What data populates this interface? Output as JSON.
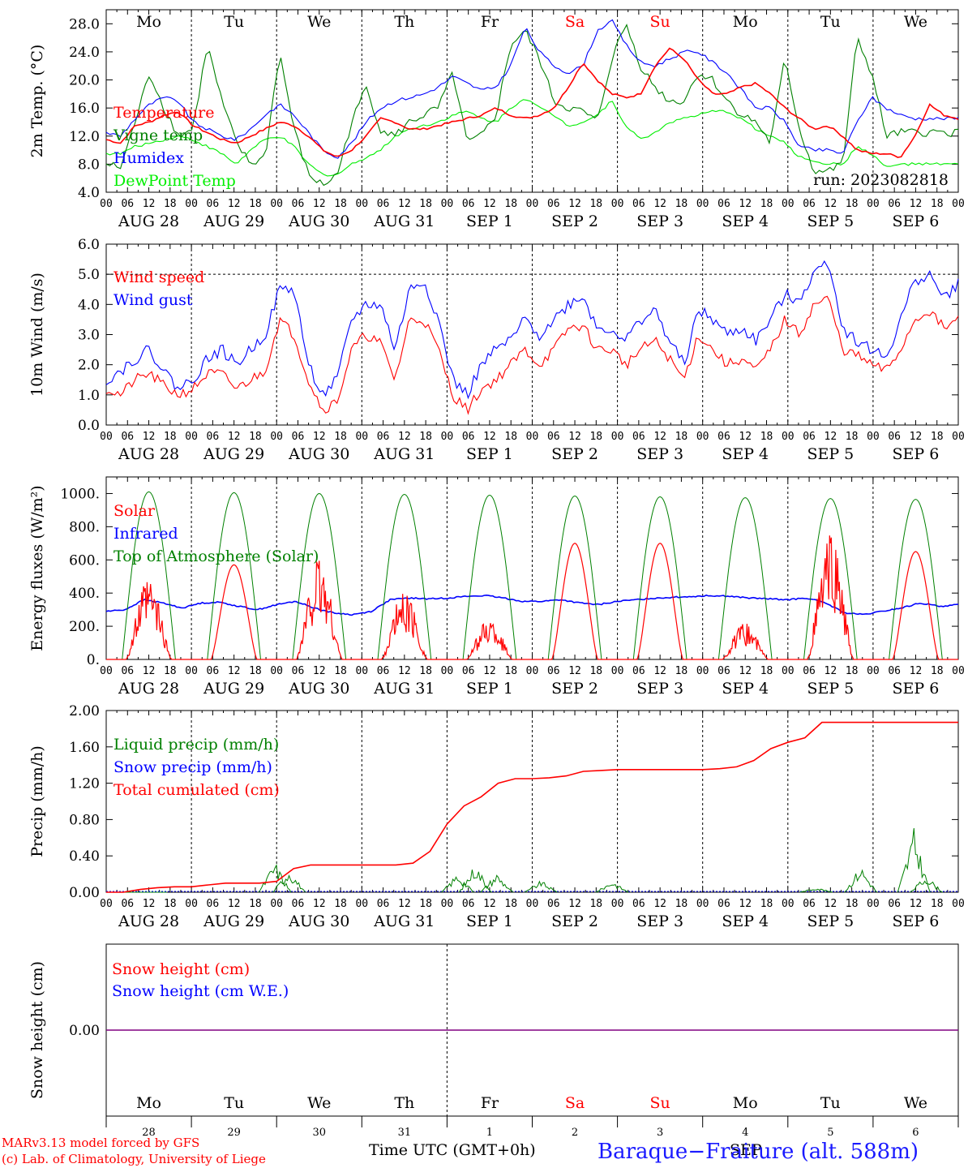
{
  "chart_data": [
    {
      "type": "line",
      "ylabel": "2m Temp. (°C)",
      "ylim": [
        4,
        30
      ],
      "yticks": [
        "4.0",
        "8.0",
        "12.0",
        "16.0",
        "20.0",
        "24.0",
        "28.0"
      ],
      "ytick_values": [
        4,
        8,
        12,
        16,
        20,
        24,
        28
      ],
      "run_label": "run: 2023082818",
      "series": [
        {
          "name": "Temperature",
          "color": "#ff0000",
          "values": [
            11.5,
            11.0,
            13.5,
            14.0,
            15.0,
            15.5,
            13.5,
            12.5,
            11.5,
            11.0,
            12.0,
            13.0,
            14.0,
            13.5,
            12.0,
            10.0,
            9.0,
            10.0,
            12.0,
            14.5,
            14.0,
            13.0,
            13.0,
            13.5,
            14.0,
            14.5,
            15.0,
            16.0,
            15.0,
            14.5,
            15.0,
            16.0,
            19.0,
            22.5,
            20.0,
            18.0,
            17.5,
            18.0,
            22.0,
            24.5,
            23.0,
            20.0,
            18.0,
            18.0,
            19.0,
            19.5,
            18.0,
            16.0,
            14.5,
            13.0,
            13.5,
            12.0,
            10.0,
            9.5,
            9.5,
            9.0,
            12.0,
            16.5,
            15.0,
            14.5
          ]
        },
        {
          "name": "Vigne temp",
          "color": "#008000",
          "values": [
            8.0,
            7.5,
            14.0,
            21.0,
            16.0,
            12.0,
            13.0,
            25.0,
            17.0,
            11.0,
            8.0,
            9.0,
            24.0,
            13.0,
            6.5,
            5.0,
            6.5,
            14.0,
            19.0,
            13.0,
            12.0,
            14.0,
            15.0,
            16.0,
            21.0,
            11.0,
            12.0,
            15.0,
            25.0,
            27.0,
            23.0,
            17.0,
            16.0,
            15.5,
            14.0,
            23.0,
            28.0,
            22.0,
            19.0,
            17.0,
            17.0,
            21.0,
            20.0,
            17.0,
            15.0,
            14.0,
            11.0,
            23.0,
            13.0,
            7.0,
            7.0,
            8.0,
            26.0,
            21.0,
            12.0,
            12.5,
            12.5,
            12.5,
            12.5,
            12.5
          ]
        },
        {
          "name": "Humidex",
          "color": "#0000ff",
          "values": [
            12.5,
            12.0,
            14.5,
            16.5,
            17.5,
            17.0,
            14.0,
            13.0,
            12.0,
            11.5,
            13.0,
            15.0,
            16.5,
            15.0,
            12.5,
            10.0,
            9.0,
            11.0,
            14.0,
            16.0,
            17.0,
            17.5,
            18.0,
            19.0,
            20.5,
            19.5,
            18.5,
            19.0,
            22.0,
            27.5,
            24.0,
            22.0,
            21.0,
            22.0,
            27.0,
            28.5,
            25.0,
            22.5,
            22.0,
            23.0,
            24.0,
            24.0,
            22.5,
            21.0,
            18.5,
            16.0,
            16.0,
            14.0,
            10.5,
            10.0,
            10.0,
            9.5,
            14.0,
            17.5,
            16.0,
            15.0,
            14.5,
            14.5,
            14.5,
            14.5
          ]
        },
        {
          "name": "DewPoint Temp",
          "color": "#00ee00",
          "values": [
            9.5,
            9.5,
            10.5,
            11.0,
            11.5,
            12.0,
            11.5,
            10.5,
            9.5,
            8.0,
            10.0,
            11.5,
            12.0,
            10.5,
            8.0,
            6.5,
            6.5,
            8.0,
            9.0,
            10.0,
            12.0,
            13.0,
            13.5,
            14.0,
            15.0,
            15.5,
            14.5,
            14.0,
            16.0,
            17.5,
            16.0,
            15.0,
            13.5,
            14.0,
            15.0,
            17.0,
            13.5,
            11.5,
            12.5,
            14.0,
            14.5,
            15.0,
            15.5,
            15.5,
            14.5,
            13.0,
            12.0,
            11.0,
            9.0,
            8.5,
            8.0,
            8.0,
            10.5,
            9.5,
            7.5,
            8.0,
            8.0,
            8.0,
            8.0,
            8.0
          ]
        }
      ]
    },
    {
      "type": "line",
      "ylabel": "10m Wind (m/s)",
      "ylim": [
        0,
        6
      ],
      "yticks": [
        "0.0",
        "1.0",
        "2.0",
        "3.0",
        "4.0",
        "5.0",
        "6.0"
      ],
      "ytick_values": [
        0,
        1,
        2,
        3,
        4,
        5,
        6
      ],
      "reference_line": 5.0,
      "series": [
        {
          "name": "Wind speed",
          "color": "#ff0000",
          "values": [
            1.2,
            1.0,
            1.5,
            1.7,
            1.3,
            1.0,
            1.2,
            1.7,
            1.7,
            1.2,
            1.5,
            1.8,
            3.5,
            3.0,
            1.5,
            0.5,
            0.8,
            2.5,
            3.0,
            2.7,
            1.5,
            3.5,
            3.5,
            2.5,
            1.0,
            0.5,
            1.2,
            1.5,
            2.0,
            2.5,
            2.0,
            2.5,
            3.2,
            3.3,
            2.5,
            2.5,
            2.0,
            2.5,
            2.8,
            2.2,
            1.5,
            3.0,
            2.5,
            2.0,
            2.2,
            1.8,
            2.5,
            3.5,
            3.0,
            4.0,
            4.2,
            2.5,
            2.3,
            2.0,
            1.8,
            2.5,
            3.5,
            3.8,
            3.2,
            3.5
          ]
        },
        {
          "name": "Wind gust",
          "color": "#0000ff",
          "values": [
            1.5,
            1.8,
            2.2,
            2.5,
            1.8,
            1.2,
            1.5,
            2.2,
            2.5,
            2.0,
            2.5,
            3.0,
            4.5,
            4.5,
            2.0,
            1.0,
            1.5,
            3.5,
            4.0,
            4.0,
            2.5,
            4.5,
            4.8,
            3.5,
            1.5,
            1.0,
            2.0,
            2.5,
            2.8,
            3.5,
            3.0,
            3.5,
            4.0,
            4.3,
            3.2,
            3.2,
            2.8,
            3.5,
            3.8,
            2.8,
            2.0,
            3.8,
            3.5,
            3.0,
            3.2,
            2.8,
            3.5,
            4.3,
            4.2,
            5.0,
            5.5,
            3.2,
            2.8,
            2.5,
            2.2,
            3.5,
            4.8,
            5.0,
            4.2,
            4.7
          ]
        }
      ]
    },
    {
      "type": "line",
      "ylabel": "Energy fluxes (W/m²)",
      "ylim": [
        0,
        1100
      ],
      "yticks": [
        "0.",
        "200.",
        "400.",
        "600.",
        "800.",
        "1000."
      ],
      "ytick_values": [
        0,
        200,
        400,
        600,
        800,
        1000
      ],
      "solar_peaks": [
        450,
        570,
        560,
        380,
        230,
        700,
        700,
        200,
        700,
        650
      ],
      "toa_peaks": [
        1010,
        1005,
        1000,
        995,
        990,
        985,
        980,
        975,
        970,
        965
      ],
      "infrared": [
        290,
        300,
        360,
        340,
        310,
        340,
        345,
        320,
        300,
        330,
        350,
        310,
        280,
        270,
        290,
        360,
        370,
        365,
        370,
        380,
        385,
        370,
        350,
        350,
        360,
        340,
        330,
        350,
        360,
        370,
        375,
        380,
        385,
        380,
        370,
        365,
        360,
        370,
        340,
        280,
        270,
        290,
        310,
        340,
        320,
        330
      ],
      "series": [
        {
          "name": "Solar",
          "color": "#ff0000"
        },
        {
          "name": "Infrared",
          "color": "#0000ff"
        },
        {
          "name": "Top of Atmosphere (Solar)",
          "color": "#008000"
        }
      ]
    },
    {
      "type": "line",
      "ylabel": "Precip (mm/h)",
      "ylim": [
        0,
        2
      ],
      "yticks": [
        "0.00",
        "0.40",
        "0.80",
        "1.20",
        "1.60",
        "2.00"
      ],
      "ytick_values": [
        0,
        0.4,
        0.8,
        1.2,
        1.6,
        2.0
      ],
      "total_cumulated": [
        0.0,
        0.0,
        0.03,
        0.05,
        0.06,
        0.06,
        0.08,
        0.1,
        0.1,
        0.1,
        0.12,
        0.26,
        0.3,
        0.3,
        0.3,
        0.3,
        0.3,
        0.3,
        0.32,
        0.45,
        0.75,
        0.95,
        1.05,
        1.2,
        1.25,
        1.25,
        1.26,
        1.28,
        1.33,
        1.34,
        1.35,
        1.35,
        1.35,
        1.35,
        1.35,
        1.35,
        1.36,
        1.38,
        1.45,
        1.58,
        1.65,
        1.7,
        1.87,
        1.87,
        1.87,
        1.87,
        1.87,
        1.87,
        1.87,
        1.87,
        1.87
      ],
      "liquid_spikes": [
        [
          1.0,
          0.0
        ],
        [
          2.5,
          0.0
        ],
        [
          9.5,
          0.32
        ],
        [
          10.3,
          0.25
        ],
        [
          19.8,
          0.2
        ],
        [
          20.8,
          0.3
        ],
        [
          22.0,
          0.2
        ],
        [
          24.5,
          0.12
        ],
        [
          28.5,
          0.12
        ],
        [
          40.0,
          0.05
        ],
        [
          42.5,
          0.28
        ],
        [
          45.5,
          0.65
        ],
        [
          46.2,
          0.18
        ]
      ],
      "series": [
        {
          "name": "Liquid precip (mm/h)",
          "color": "#008000"
        },
        {
          "name": "Snow precip (mm/h)",
          "color": "#0000ff"
        },
        {
          "name": "Total cumulated (cm)",
          "color": "#ff0000"
        }
      ]
    },
    {
      "type": "line",
      "ylabel": "Snow height (cm)",
      "yticks": [
        "0.00"
      ],
      "ytick_values": [
        0
      ],
      "series": [
        {
          "name": "Snow height (cm)",
          "color": "#ff0000",
          "values": [
            0,
            0
          ]
        },
        {
          "name": "Snow height (cm W.E.)",
          "color": "#0000ff",
          "values": [
            0,
            0
          ]
        }
      ]
    }
  ],
  "hour_ticks": [
    "00",
    "06",
    "12",
    "18"
  ],
  "final_hour_tick": "00",
  "date_labels": [
    "AUG 28",
    "AUG 29",
    "AUG 30",
    "AUG 31",
    "SEP  1",
    "SEP  2",
    "SEP  3",
    "SEP  4",
    "SEP  5",
    "SEP  6"
  ],
  "day_names": [
    "Mo",
    "Tu",
    "We",
    "Th",
    "Fr",
    "Sa",
    "Su",
    "Mo",
    "Tu",
    "We"
  ],
  "day_name_colors": [
    "#000000",
    "#000000",
    "#000000",
    "#000000",
    "#000000",
    "#ff0000",
    "#ff0000",
    "#000000",
    "#000000",
    "#000000"
  ],
  "day_numbers": [
    "28",
    "29",
    "30",
    "31",
    "1",
    "2",
    "3",
    "4",
    "5",
    "6"
  ],
  "footer": {
    "model_line": "MARv3.13 model forced by GFS",
    "copyright_line": "(c) Lab. of Climatology, University of Liege",
    "axis_title": "Time UTC (GMT+0h)",
    "month_label": "SEP",
    "station": "Baraque−Fraiture (alt. 588m)"
  },
  "colors": {
    "red": "#ff0000",
    "green": "#008000",
    "blue": "#0000ff",
    "lime": "#00ee00",
    "purple": "#800080"
  }
}
